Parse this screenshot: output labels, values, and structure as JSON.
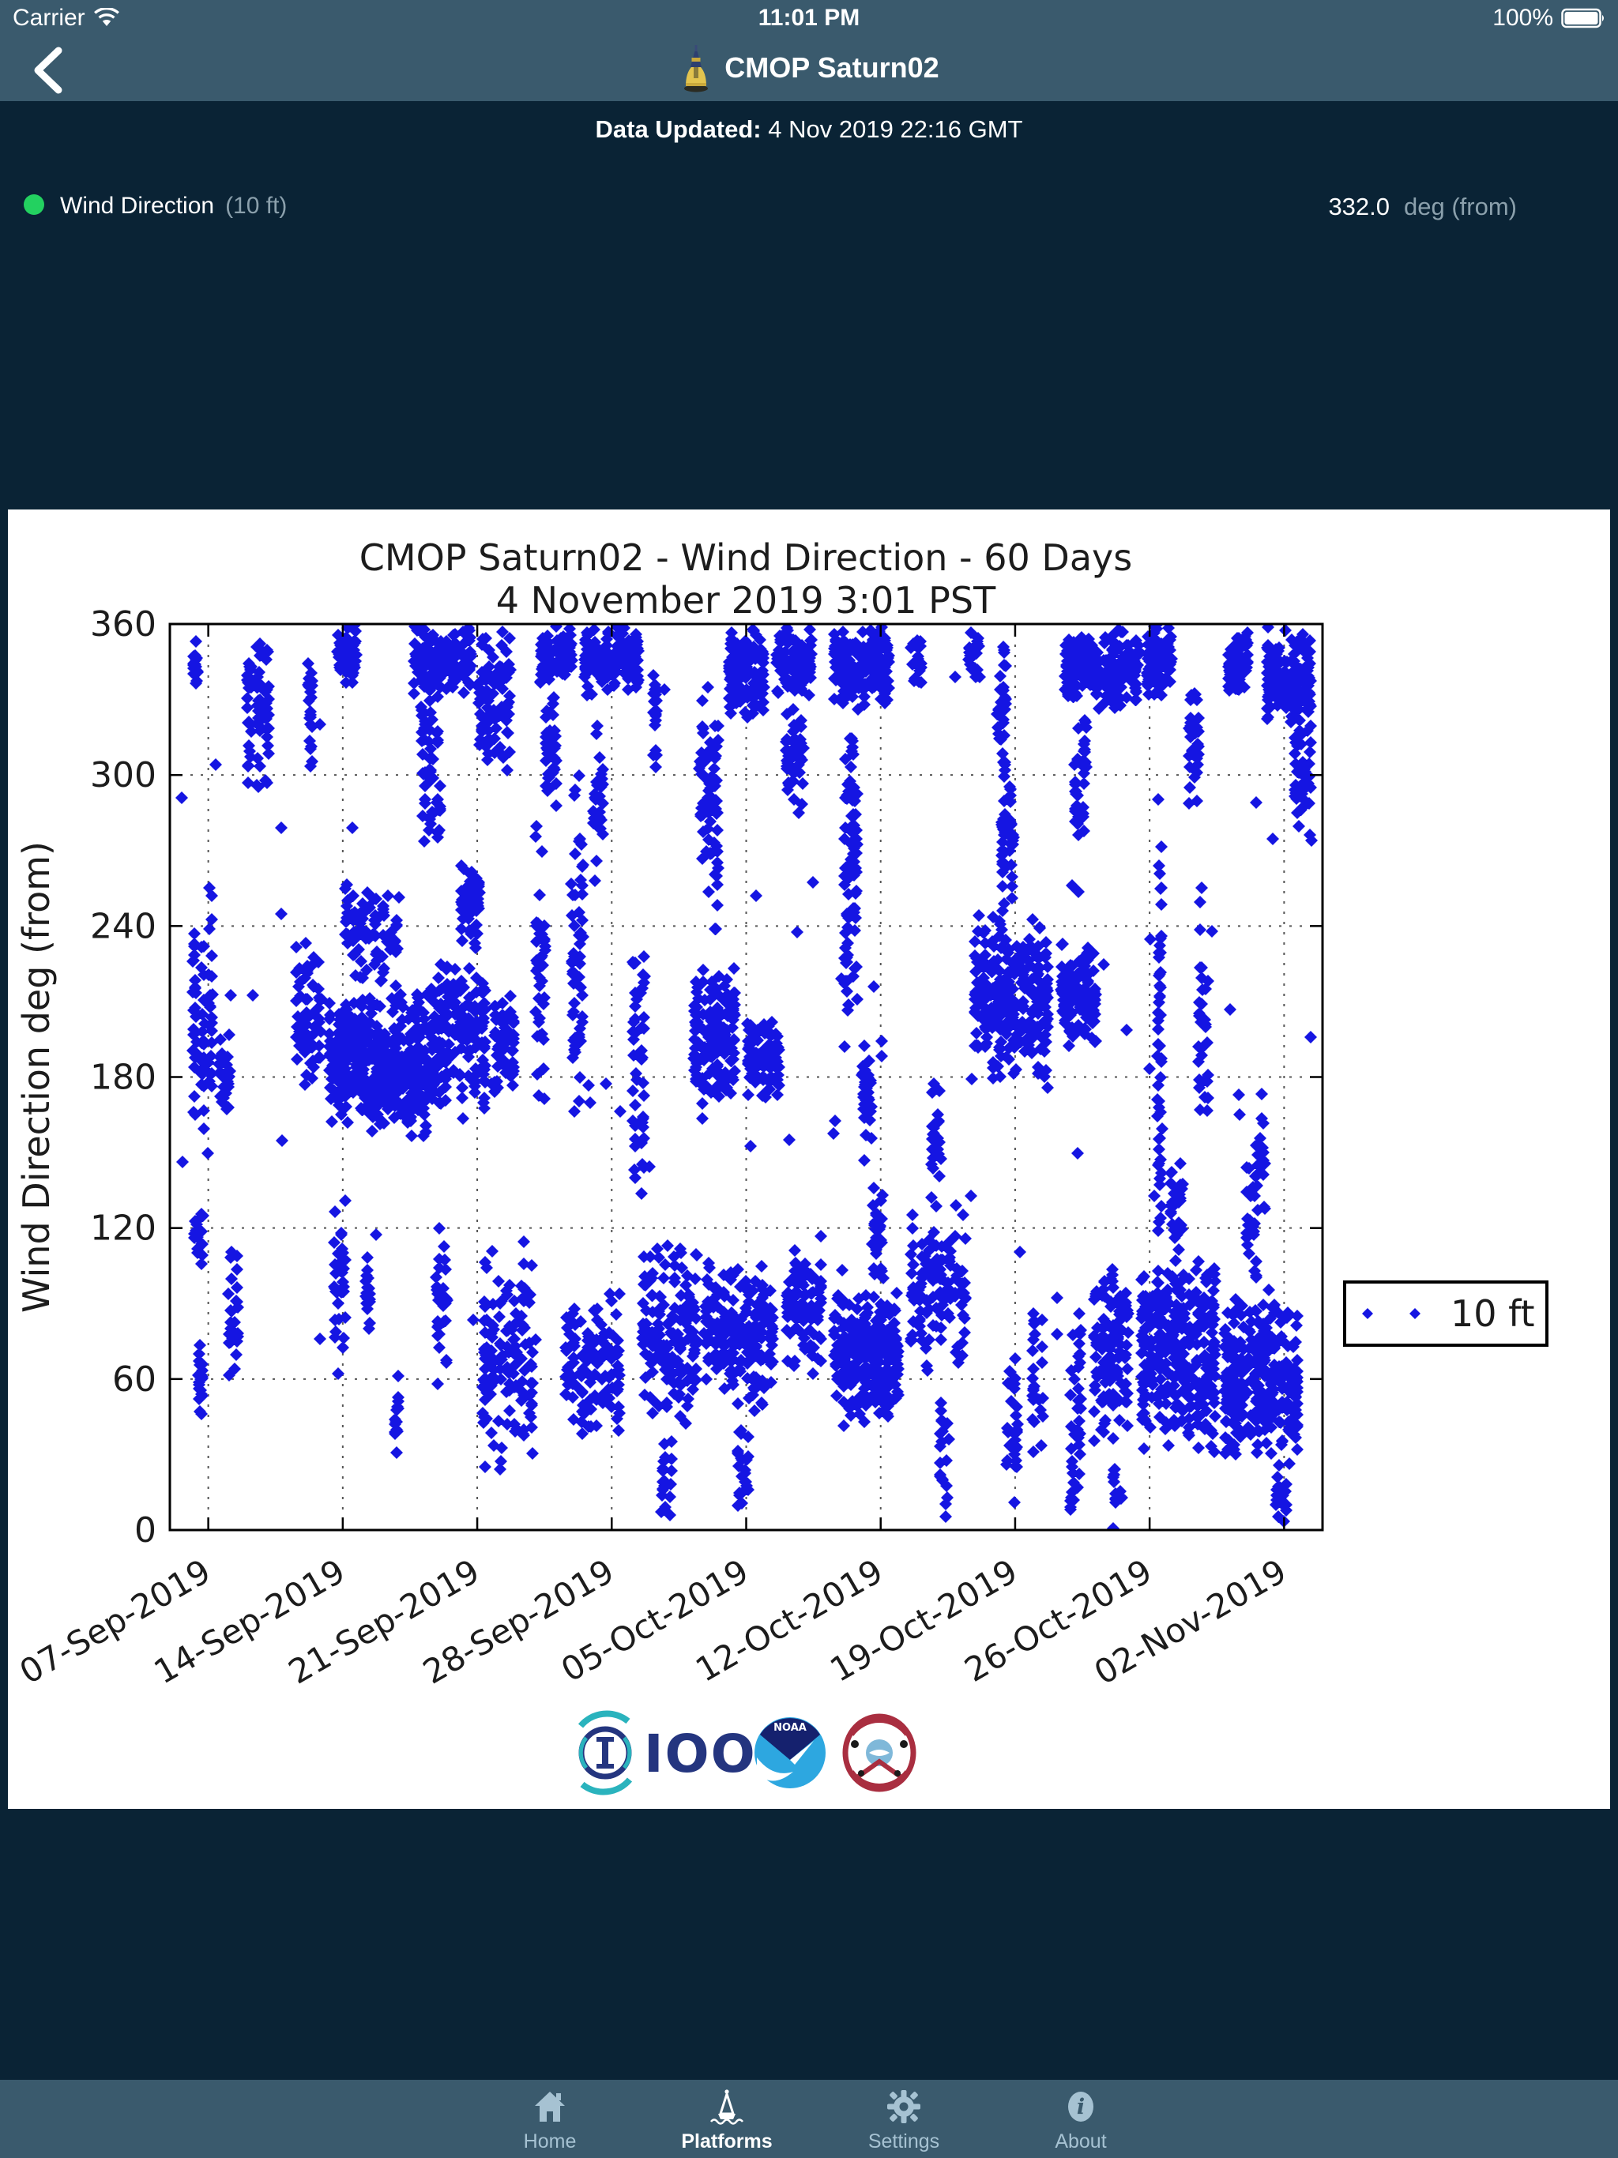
{
  "status_bar": {
    "carrier": "Carrier",
    "time": "11:01 PM",
    "battery_pct": "100%"
  },
  "nav_bar": {
    "title": "CMOP Saturn02"
  },
  "update_banner": {
    "label": "Data Updated:",
    "value": "4 Nov 2019 22:16 GMT"
  },
  "reading_row": {
    "status_color": "#23d160",
    "name": "Wind Direction",
    "depth": "(10 ft)",
    "value": "332.0",
    "unit": "deg (from)"
  },
  "tab_bar": {
    "items": [
      {
        "label": "Home",
        "icon": "home-icon",
        "active": false
      },
      {
        "label": "Platforms",
        "icon": "buoy-icon",
        "active": true
      },
      {
        "label": "Settings",
        "icon": "gear-icon",
        "active": false
      },
      {
        "label": "About",
        "icon": "info-icon",
        "active": false
      }
    ]
  },
  "logos": {
    "ioos_label": "IOOS",
    "noaa_label": "NOAA",
    "cmop_label": "CMOP tribal emblem"
  },
  "chart_data": {
    "type": "scatter",
    "title_line1": "CMOP Saturn02 - Wind Direction - 60 Days",
    "title_line2": "4 November 2019 3:01 PST",
    "ylabel": "Wind Direction deg (from)",
    "ylim": [
      0,
      360
    ],
    "yticks": [
      0,
      60,
      120,
      180,
      240,
      300,
      360
    ],
    "xlim_days": [
      0,
      60
    ],
    "xtick_days": [
      2,
      9,
      16,
      23,
      30,
      37,
      44,
      51,
      58
    ],
    "xtick_labels": [
      "07-Sep-2019",
      "14-Sep-2019",
      "21-Sep-2019",
      "28-Sep-2019",
      "05-Oct-2019",
      "12-Oct-2019",
      "19-Oct-2019",
      "26-Oct-2019",
      "02-Nov-2019"
    ],
    "grid": true,
    "marker": "diamond",
    "marker_color": "#1515e2",
    "legend": {
      "label": "10 ft",
      "position": "right-outside"
    },
    "seed": 42,
    "clusters_note": "each cluster = [day_start, day_end, deg_min, deg_max, point_count] of the 60-day window starting 05-Sep-2019",
    "clusters": [
      [
        1.1,
        1.6,
        330,
        360,
        18
      ],
      [
        3.9,
        5.3,
        290,
        360,
        70
      ],
      [
        7.0,
        7.6,
        300,
        358,
        25
      ],
      [
        8.6,
        9.8,
        335,
        360,
        55
      ],
      [
        12.6,
        15.8,
        330,
        360,
        140
      ],
      [
        13.0,
        14.2,
        270,
        335,
        60
      ],
      [
        16.0,
        17.8,
        300,
        360,
        90
      ],
      [
        19.2,
        21.0,
        335,
        360,
        80
      ],
      [
        19.5,
        20.2,
        280,
        340,
        35
      ],
      [
        21.5,
        24.5,
        330,
        360,
        150
      ],
      [
        22.0,
        22.6,
        250,
        330,
        30
      ],
      [
        25.0,
        25.5,
        300,
        345,
        20
      ],
      [
        27.5,
        28.2,
        250,
        340,
        35
      ],
      [
        29.0,
        31.0,
        320,
        360,
        120
      ],
      [
        31.5,
        33.5,
        330,
        360,
        100
      ],
      [
        32.0,
        33.0,
        280,
        330,
        45
      ],
      [
        34.5,
        37.5,
        325,
        360,
        160
      ],
      [
        35.2,
        35.8,
        250,
        325,
        30
      ],
      [
        38.5,
        39.2,
        330,
        355,
        18
      ],
      [
        41.5,
        42.2,
        335,
        360,
        20
      ],
      [
        43.0,
        43.6,
        300,
        358,
        30
      ],
      [
        46.5,
        50.5,
        325,
        360,
        220
      ],
      [
        47.0,
        47.8,
        270,
        330,
        40
      ],
      [
        50.8,
        52.2,
        330,
        360,
        90
      ],
      [
        53.0,
        53.6,
        280,
        358,
        30
      ],
      [
        55.0,
        56.2,
        330,
        360,
        70
      ],
      [
        57.0,
        59.5,
        315,
        360,
        160
      ],
      [
        58.5,
        59.5,
        270,
        320,
        40
      ],
      [
        1.1,
        2.3,
        150,
        260,
        70
      ],
      [
        2.5,
        3.2,
        160,
        200,
        25
      ],
      [
        6.5,
        8.0,
        170,
        240,
        60
      ],
      [
        8.2,
        13.5,
        155,
        215,
        420
      ],
      [
        9.0,
        12.0,
        215,
        260,
        80
      ],
      [
        13.5,
        16.5,
        160,
        230,
        180
      ],
      [
        15.0,
        16.2,
        230,
        265,
        45
      ],
      [
        16.8,
        18.0,
        170,
        215,
        60
      ],
      [
        19.0,
        19.6,
        165,
        300,
        40
      ],
      [
        20.8,
        21.6,
        150,
        310,
        55
      ],
      [
        24.0,
        24.8,
        100,
        260,
        45
      ],
      [
        27.2,
        29.5,
        165,
        225,
        160
      ],
      [
        28.0,
        28.6,
        225,
        330,
        40
      ],
      [
        30.0,
        31.8,
        170,
        205,
        90
      ],
      [
        35.0,
        35.9,
        185,
        330,
        60
      ],
      [
        36.0,
        36.6,
        150,
        200,
        30
      ],
      [
        39.5,
        40.2,
        130,
        185,
        25
      ],
      [
        41.8,
        45.8,
        175,
        245,
        260
      ],
      [
        43.2,
        44.0,
        245,
        310,
        45
      ],
      [
        46.3,
        48.3,
        190,
        235,
        110
      ],
      [
        51.2,
        51.8,
        100,
        300,
        50
      ],
      [
        53.5,
        54.1,
        150,
        260,
        30
      ],
      [
        56.5,
        57.1,
        120,
        180,
        20
      ],
      [
        1.2,
        1.8,
        100,
        135,
        20
      ],
      [
        1.3,
        1.9,
        40,
        80,
        22
      ],
      [
        3.0,
        3.6,
        60,
        120,
        25
      ],
      [
        8.5,
        9.2,
        60,
        130,
        35
      ],
      [
        10.0,
        10.6,
        75,
        110,
        20
      ],
      [
        11.5,
        12.1,
        30,
        60,
        15
      ],
      [
        13.8,
        14.5,
        50,
        130,
        30
      ],
      [
        16.2,
        19.0,
        20,
        120,
        130
      ],
      [
        20.5,
        23.5,
        30,
        100,
        110
      ],
      [
        24.5,
        27.5,
        40,
        115,
        150
      ],
      [
        25.5,
        26.2,
        0,
        40,
        20
      ],
      [
        27.8,
        31.5,
        45,
        110,
        200
      ],
      [
        29.5,
        30.2,
        0,
        45,
        25
      ],
      [
        32.0,
        34.0,
        60,
        120,
        90
      ],
      [
        34.5,
        38.0,
        40,
        95,
        260
      ],
      [
        36.5,
        37.2,
        95,
        140,
        30
      ],
      [
        38.5,
        41.5,
        60,
        130,
        120
      ],
      [
        40.0,
        40.6,
        0,
        60,
        20
      ],
      [
        43.5,
        44.2,
        0,
        70,
        30
      ],
      [
        44.8,
        45.5,
        30,
        90,
        25
      ],
      [
        46.8,
        47.5,
        0,
        90,
        40
      ],
      [
        48.0,
        50.0,
        30,
        110,
        120
      ],
      [
        49.0,
        49.6,
        0,
        35,
        15
      ],
      [
        50.5,
        54.5,
        30,
        110,
        320
      ],
      [
        52.0,
        52.8,
        110,
        150,
        30
      ],
      [
        54.8,
        58.8,
        25,
        95,
        300
      ],
      [
        56.0,
        56.6,
        95,
        150,
        25
      ],
      [
        57.5,
        58.2,
        0,
        30,
        18
      ],
      [
        0.5,
        59.5,
        5,
        355,
        90
      ]
    ]
  }
}
